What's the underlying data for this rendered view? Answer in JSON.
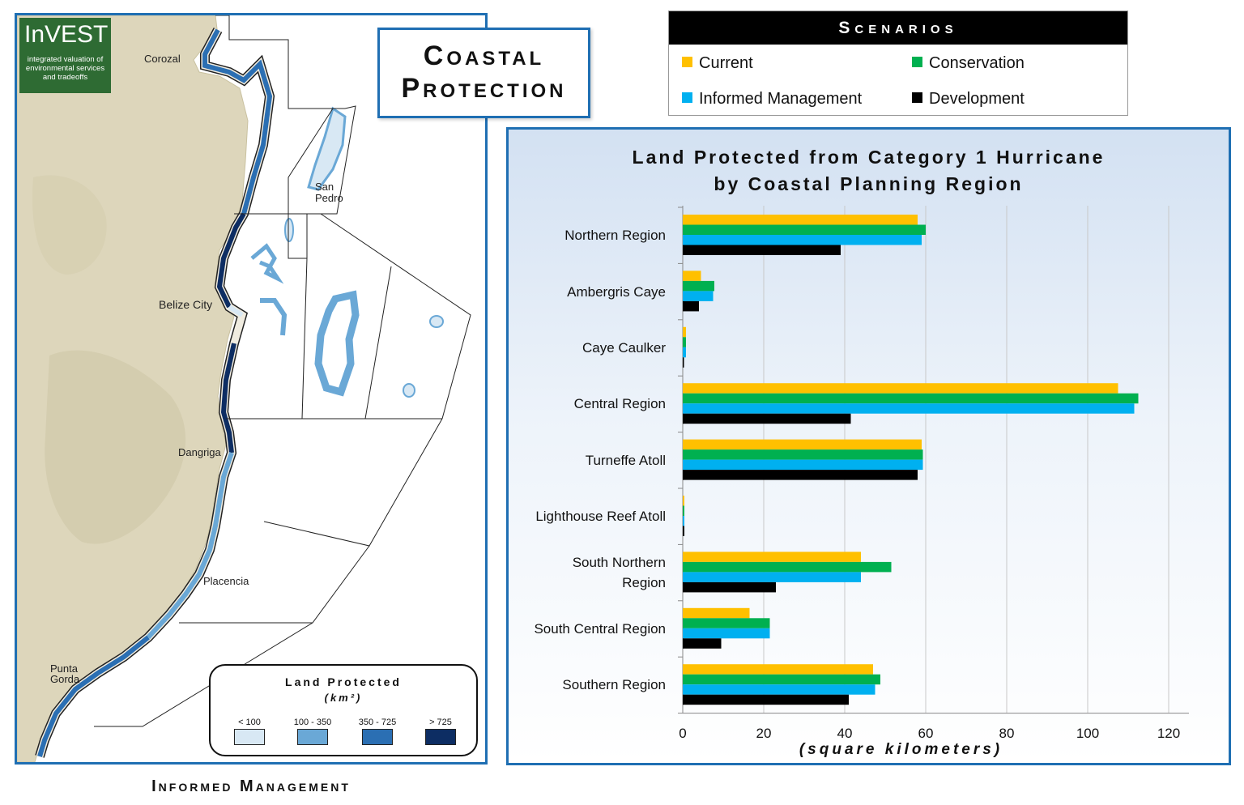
{
  "title": {
    "line1": "Coastal",
    "line2": "Protection"
  },
  "scenarios": {
    "header": "Scenarios",
    "items": [
      {
        "label": "Current",
        "color": "#ffc000"
      },
      {
        "label": "Conservation",
        "color": "#00b050"
      },
      {
        "label": "Informed Management",
        "color": "#00b0f0"
      },
      {
        "label": "Development",
        "color": "#000000"
      }
    ]
  },
  "map": {
    "logo": {
      "title": "InVEST",
      "subtitle": "integrated valuation of environmental services and tradeoffs"
    },
    "places": [
      "Corozal",
      "San",
      "Pedro",
      "Belize City",
      "Dangriga",
      "Placencia",
      "Punta",
      "Gorda"
    ],
    "legend": {
      "title": "Land Protected",
      "units": "(km²)",
      "items": [
        {
          "label": "< 100",
          "color": "#d8e8f4"
        },
        {
          "label": "100 - 350",
          "color": "#6aa8d6"
        },
        {
          "label": "350 - 725",
          "color": "#2b6fb3"
        },
        {
          "label": "> 725",
          "color": "#0d2d63"
        }
      ]
    },
    "caption": "Informed Management"
  },
  "chart_data": {
    "type": "bar",
    "orientation": "horizontal",
    "title": "Land Protected from Category 1 Hurricane by Coastal Planning Region",
    "title_lines": [
      "Land Protected from Category 1 Hurricane",
      "by Coastal Planning Region"
    ],
    "xlabel": "(square kilometers)",
    "xlim": [
      0,
      125
    ],
    "xticks": [
      0,
      20,
      40,
      60,
      80,
      100,
      120
    ],
    "grid": true,
    "categories": [
      "Northern Region",
      "Ambergris Caye",
      "Caye Caulker",
      "Central Region",
      "Turneffe Atoll",
      "Lighthouse Reef Atoll",
      "South Northern Region",
      "South Central Region",
      "Southern Region"
    ],
    "category_lines": [
      [
        "Northern Region"
      ],
      [
        "Ambergris Caye"
      ],
      [
        "Caye Caulker"
      ],
      [
        "Central Region"
      ],
      [
        "Turneffe Atoll"
      ],
      [
        "Lighthouse Reef Atoll"
      ],
      [
        "South Northern",
        "Region"
      ],
      [
        "South Central Region"
      ],
      [
        "Southern Region"
      ]
    ],
    "series": [
      {
        "name": "Current",
        "color": "#ffc000",
        "values": [
          58,
          4.5,
          0.8,
          107.5,
          59,
          0.4,
          44,
          16.5,
          47
        ]
      },
      {
        "name": "Conservation",
        "color": "#00b050",
        "values": [
          60,
          7.8,
          0.8,
          112.5,
          59.3,
          0.4,
          51.5,
          21.5,
          48.8
        ]
      },
      {
        "name": "Informed Management",
        "color": "#00b0f0",
        "values": [
          59,
          7.5,
          0.8,
          111.5,
          59.3,
          0.4,
          44,
          21.5,
          47.5
        ]
      },
      {
        "name": "Development",
        "color": "#000000",
        "values": [
          39,
          4,
          0.3,
          41.5,
          58,
          0.4,
          23,
          9.5,
          41
        ]
      }
    ]
  }
}
